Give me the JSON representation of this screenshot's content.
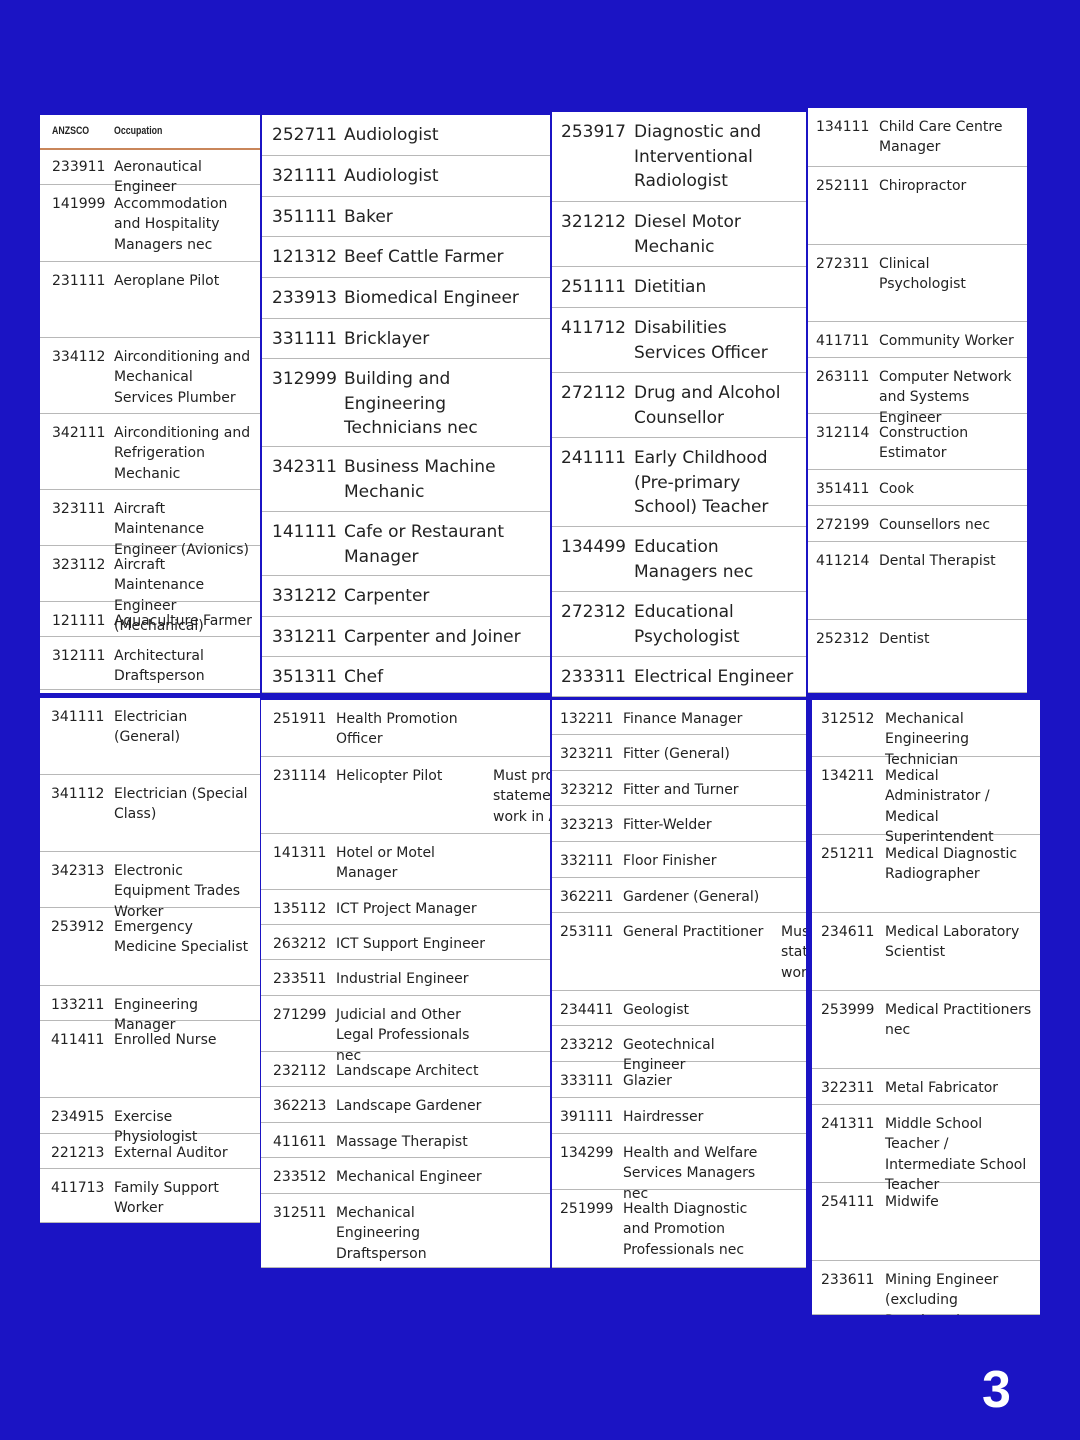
{
  "panels": [
    {
      "header": [
        "ANZSCO",
        "Occupation"
      ],
      "rows": [
        [
          "233911",
          "Aeronautical Engineer"
        ],
        [
          "141999",
          "Accommodation and Hospitality Managers nec"
        ],
        [
          "231111",
          "Aeroplane Pilot"
        ],
        [
          "334112",
          "Airconditioning and Mechanical Services Plumber"
        ],
        [
          "342111",
          "Airconditioning and Refrigeration Mechanic"
        ],
        [
          "323111",
          "Aircraft Maintenance Engineer (Avionics)"
        ],
        [
          "323112",
          "Aircraft Maintenance Engineer (Mechanical)"
        ],
        [
          "121111",
          "Aquaculture Farmer"
        ],
        [
          "312111",
          "Architectural Draftsperson"
        ]
      ]
    },
    {
      "rows": [
        [
          "252711",
          "Audiologist"
        ],
        [
          "321111",
          "Audiologist"
        ],
        [
          "351111",
          "Baker"
        ],
        [
          "121312",
          "Beef Cattle Farmer"
        ],
        [
          "233913",
          "Biomedical Engineer"
        ],
        [
          "331111",
          "Bricklayer"
        ],
        [
          "312999",
          "Building and Engineering Technicians nec"
        ],
        [
          "342311",
          "Business Machine Mechanic"
        ],
        [
          "141111",
          "Cafe or Restaurant Manager"
        ],
        [
          "331212",
          "Carpenter"
        ],
        [
          "331211",
          "Carpenter and Joiner"
        ],
        [
          "351311",
          "Chef"
        ]
      ]
    },
    {
      "rows": [
        [
          "253917",
          "Diagnostic and Interventional Radiologist"
        ],
        [
          "321212",
          "Diesel Motor Mechanic"
        ],
        [
          "251111",
          "Dietitian"
        ],
        [
          "411712",
          "Disabilities Services Officer"
        ],
        [
          "272112",
          "Drug and Alcohol Counsellor"
        ],
        [
          "241111",
          "Early Childhood (Pre-primary School) Teacher"
        ],
        [
          "134499",
          "Education Managers nec"
        ],
        [
          "272312",
          "Educational Psychologist"
        ],
        [
          "233311",
          "Electrical Engineer"
        ]
      ]
    },
    {
      "rows": [
        [
          "134111",
          "Child Care Centre Manager"
        ],
        [
          "252111",
          "Chiropractor"
        ],
        [
          "272311",
          "Clinical Psychologist"
        ],
        [
          "411711",
          "Community Worker"
        ],
        [
          "263111",
          "Computer Network and Systems Engineer"
        ],
        [
          "312114",
          "Construction Estimator"
        ],
        [
          "351411",
          "Cook"
        ],
        [
          "272199",
          "Counsellors nec"
        ],
        [
          "411214",
          "Dental Therapist"
        ],
        [
          "252312",
          "Dentist"
        ]
      ]
    },
    {
      "rows": [
        [
          "341111",
          "Electrician (General)"
        ],
        [
          "341112",
          "Electrician (Special Class)"
        ],
        [
          "342313",
          "Electronic Equipment Trades Worker"
        ],
        [
          "253912",
          "Emergency Medicine Specialist"
        ],
        [
          "133211",
          "Engineering Manager"
        ],
        [
          "411411",
          "Enrolled Nurse"
        ],
        [
          "234915",
          "Exercise Physiologist"
        ],
        [
          "221213",
          "External Auditor"
        ],
        [
          "411713",
          "Family Support Worker"
        ]
      ]
    },
    {
      "rows": [
        [
          "251911",
          "Health Promotion Officer"
        ],
        [
          "231114",
          "Helicopter Pilot",
          "Must pro\nstatemen\nwork in A"
        ],
        [
          "141311",
          "Hotel or Motel Manager"
        ],
        [
          "135112",
          "ICT Project Manager"
        ],
        [
          "263212",
          "ICT Support Engineer"
        ],
        [
          "233511",
          "Industrial Engineer"
        ],
        [
          "271299",
          "Judicial and Other Legal Professionals nec"
        ],
        [
          "232112",
          "Landscape Architect"
        ],
        [
          "362213",
          "Landscape Gardener"
        ],
        [
          "411611",
          "Massage Therapist"
        ],
        [
          "233512",
          "Mechanical Engineer"
        ],
        [
          "312511",
          "Mechanical Engineering Draftsperson"
        ]
      ]
    },
    {
      "rows": [
        [
          "132211",
          "Finance Manager"
        ],
        [
          "323211",
          "Fitter (General)"
        ],
        [
          "323212",
          "Fitter and Turner"
        ],
        [
          "323213",
          "Fitter-Welder"
        ],
        [
          "332111",
          "Floor Finisher"
        ],
        [
          "362211",
          "Gardener (General)"
        ],
        [
          "253111",
          "General Practitioner",
          "Mus\nstat\nwor"
        ],
        [
          "234411",
          "Geologist"
        ],
        [
          "233212",
          "Geotechnical Engineer"
        ],
        [
          "333111",
          "Glazier"
        ],
        [
          "391111",
          "Hairdresser"
        ],
        [
          "134299",
          "Health and Welfare Services Managers nec"
        ],
        [
          "251999",
          "Health Diagnostic and Promotion Professionals nec"
        ]
      ]
    },
    {
      "rows": [
        [
          "312512",
          "Mechanical Engineering Technician"
        ],
        [
          "134211",
          "Medical Administrator / Medical Superintendent"
        ],
        [
          "251211",
          "Medical Diagnostic Radiographer"
        ],
        [
          "234611",
          "Medical Laboratory Scientist"
        ],
        [
          "253999",
          "Medical Practitioners nec"
        ],
        [
          "322311",
          "Metal Fabricator"
        ],
        [
          "241311",
          "Middle School Teacher / Intermediate School Teacher"
        ],
        [
          "254111",
          "Midwife"
        ],
        [
          "233611",
          "Mining Engineer (excluding Petroleum)"
        ]
      ]
    }
  ],
  "page_number": "3"
}
